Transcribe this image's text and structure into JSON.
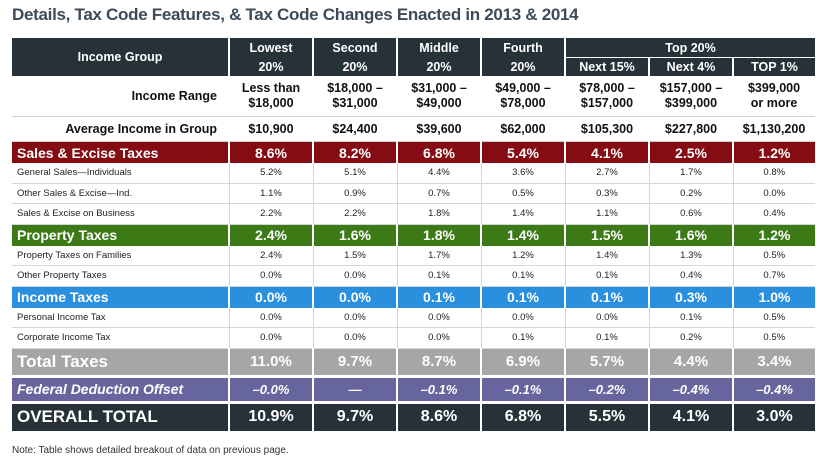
{
  "title": "Details, Tax Code Features, & Tax Code Changes Enacted in 2013 & 2014",
  "header": {
    "income_group_label": "Income Group",
    "top20_label": "Top 20%",
    "groups": [
      {
        "name": "Lowest",
        "pct": "20%"
      },
      {
        "name": "Second",
        "pct": "20%"
      },
      {
        "name": "Middle",
        "pct": "20%"
      },
      {
        "name": "Fourth",
        "pct": "20%"
      }
    ],
    "top_groups": [
      "Next 15%",
      "Next 4%",
      "TOP 1%"
    ]
  },
  "income_range": {
    "label": "Income Range",
    "values": [
      [
        "Less than",
        "$18,000"
      ],
      [
        "$18,000 –",
        "$31,000"
      ],
      [
        "$31,000 –",
        "$49,000"
      ],
      [
        "$49,000 –",
        "$78,000"
      ],
      [
        "$78,000 –",
        "$157,000"
      ],
      [
        "$157,000 –",
        "$399,000"
      ],
      [
        "$399,000",
        "or more"
      ]
    ]
  },
  "average_income": {
    "label": "Average Income in Group",
    "values": [
      "$10,900",
      "$24,400",
      "$39,600",
      "$62,000",
      "$105,300",
      "$227,800",
      "$1,130,200"
    ]
  },
  "sales": {
    "label": "Sales & Excise Taxes",
    "values": [
      "8.6%",
      "8.2%",
      "6.8%",
      "5.4%",
      "4.1%",
      "2.5%",
      "1.2%"
    ],
    "rows": [
      {
        "label": "General Sales—Individuals",
        "values": [
          "5.2%",
          "5.1%",
          "4.4%",
          "3.6%",
          "2.7%",
          "1.7%",
          "0.8%"
        ]
      },
      {
        "label": "Other Sales & Excise—Ind.",
        "values": [
          "1.1%",
          "0.9%",
          "0.7%",
          "0.5%",
          "0.3%",
          "0.2%",
          "0.0%"
        ]
      },
      {
        "label": "Sales & Excise on Business",
        "values": [
          "2.2%",
          "2.2%",
          "1.8%",
          "1.4%",
          "1.1%",
          "0.6%",
          "0.4%"
        ]
      }
    ]
  },
  "property": {
    "label": "Property Taxes",
    "values": [
      "2.4%",
      "1.6%",
      "1.8%",
      "1.4%",
      "1.5%",
      "1.6%",
      "1.2%"
    ],
    "rows": [
      {
        "label": "Property Taxes on Families",
        "values": [
          "2.4%",
          "1.5%",
          "1.7%",
          "1.2%",
          "1.4%",
          "1.3%",
          "0.5%"
        ]
      },
      {
        "label": "Other Property Taxes",
        "values": [
          "0.0%",
          "0.0%",
          "0.1%",
          "0.1%",
          "0.1%",
          "0.4%",
          "0.7%"
        ]
      }
    ]
  },
  "income": {
    "label": "Income Taxes",
    "values": [
      "0.0%",
      "0.0%",
      "0.1%",
      "0.1%",
      "0.1%",
      "0.3%",
      "1.0%"
    ],
    "rows": [
      {
        "label": "Personal Income Tax",
        "values": [
          "0.0%",
          "0.0%",
          "0.0%",
          "0.0%",
          "0.0%",
          "0.1%",
          "0.5%"
        ]
      },
      {
        "label": "Corporate Income Tax",
        "values": [
          "0.0%",
          "0.0%",
          "0.0%",
          "0.1%",
          "0.1%",
          "0.2%",
          "0.5%"
        ]
      }
    ]
  },
  "total": {
    "label": "Total Taxes",
    "values": [
      "11.0%",
      "9.7%",
      "8.7%",
      "6.9%",
      "5.7%",
      "4.4%",
      "3.4%"
    ]
  },
  "federal": {
    "label": "Federal Deduction Offset",
    "values": [
      "–0.0%",
      "—",
      "–0.1%",
      "–0.1%",
      "–0.2%",
      "–0.4%",
      "–0.4%"
    ]
  },
  "overall": {
    "label": "OVERALL TOTAL",
    "values": [
      "10.9%",
      "9.7%",
      "8.6%",
      "6.8%",
      "5.5%",
      "4.1%",
      "3.0%"
    ]
  },
  "note": "Note: Table shows detailed breakout of data on previous page.",
  "colors": {
    "header": "#263238",
    "sales": "#850c12",
    "property": "#3c7a18",
    "income": "#2a8fdc",
    "total": "#a6a6a6",
    "federal": "#67659e",
    "title": "#3d4a57"
  }
}
